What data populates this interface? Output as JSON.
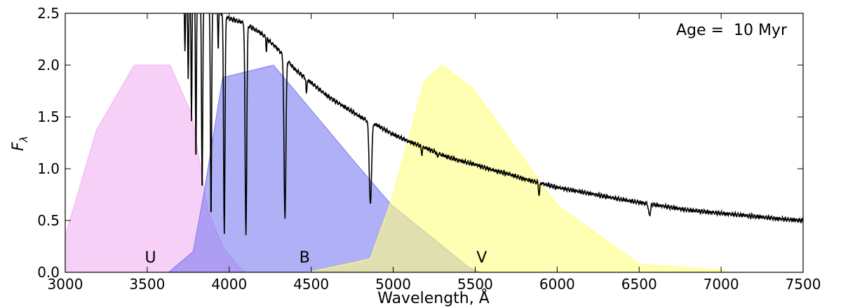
{
  "chart_data": {
    "type": "area",
    "xlabel": "Wavelength, Å",
    "ylabel": "F",
    "ylabel_subscript": "λ",
    "xlim": [
      3000,
      7500
    ],
    "ylim": [
      0,
      2.5
    ],
    "xticks": [
      3000,
      3500,
      4000,
      4500,
      5000,
      5500,
      6000,
      6500,
      7000,
      7500
    ],
    "xtick_labels": [
      "3000",
      "3500",
      "4000",
      "4500",
      "5000",
      "5500",
      "6000",
      "6500",
      "7000",
      "7500"
    ],
    "yticks": [
      0,
      0.5,
      1.0,
      1.5,
      2.0,
      2.5
    ],
    "ytick_labels": [
      "0.0",
      "0.5",
      "1.0",
      "1.5",
      "2.0",
      "2.5"
    ],
    "annotation": "Age =  10 Myr",
    "grid": false,
    "filters": [
      {
        "name": "U",
        "color": "#f1b0f1",
        "label_x": 3520,
        "label_y": 0.15,
        "x": [
          3000,
          3190,
          3420,
          3640,
          3770,
          3870,
          3960,
          4060,
          4100
        ],
        "y": [
          0.35,
          1.37,
          2.0,
          2.0,
          1.53,
          0.6,
          0.25,
          0.05,
          0.0
        ]
      },
      {
        "name": "B",
        "color": "#7c7cf0",
        "label_x": 4460,
        "label_y": 0.15,
        "x": [
          3630,
          3780,
          3850,
          3960,
          4270,
          4800,
          4990,
          5460,
          5530
        ],
        "y": [
          0.0,
          0.2,
          0.8,
          1.88,
          2.0,
          1.0,
          0.65,
          0.05,
          0.0
        ]
      },
      {
        "name": "V",
        "color": "#ffff80",
        "label_x": 5540,
        "label_y": 0.15,
        "x": [
          4480,
          4860,
          4990,
          5190,
          5300,
          5490,
          6000,
          6500,
          7020
        ],
        "y": [
          0.0,
          0.13,
          0.7,
          1.85,
          2.0,
          1.77,
          0.65,
          0.08,
          0.02
        ]
      }
    ],
    "spectrum": {
      "color": "#000000",
      "continuum": [
        [
          3700,
          2.72
        ],
        [
          3800,
          2.62
        ],
        [
          3900,
          2.53
        ],
        [
          3950,
          2.5
        ],
        [
          4000,
          2.45
        ],
        [
          4100,
          2.4
        ],
        [
          4200,
          2.3
        ],
        [
          4300,
          2.15
        ],
        [
          4400,
          1.96
        ],
        [
          4500,
          1.83
        ],
        [
          4600,
          1.7
        ],
        [
          4700,
          1.6
        ],
        [
          4800,
          1.5
        ],
        [
          4900,
          1.42
        ],
        [
          5000,
          1.33
        ],
        [
          5100,
          1.26
        ],
        [
          5200,
          1.2
        ],
        [
          5300,
          1.13
        ],
        [
          5400,
          1.08
        ],
        [
          5500,
          1.04
        ],
        [
          5600,
          0.99
        ],
        [
          5700,
          0.95
        ],
        [
          5800,
          0.9
        ],
        [
          5900,
          0.86
        ],
        [
          6000,
          0.82
        ],
        [
          6200,
          0.76
        ],
        [
          6400,
          0.7
        ],
        [
          6600,
          0.65
        ],
        [
          6800,
          0.6
        ],
        [
          7000,
          0.57
        ],
        [
          7200,
          0.54
        ],
        [
          7400,
          0.51
        ],
        [
          7500,
          0.5
        ]
      ],
      "absorption_lines": [
        {
          "x": 3730,
          "depth": 0.2,
          "width": 4
        },
        {
          "x": 3750,
          "depth": 0.3,
          "width": 4
        },
        {
          "x": 3770,
          "depth": 0.45,
          "width": 4
        },
        {
          "x": 3797,
          "depth": 0.6,
          "width": 4
        },
        {
          "x": 3835,
          "depth": 0.7,
          "width": 5
        },
        {
          "x": 3889,
          "depth": 0.8,
          "width": 5
        },
        {
          "x": 3933,
          "depth": 0.15,
          "width": 3
        },
        {
          "x": 3970,
          "depth": 0.85,
          "width": 6
        },
        {
          "x": 4102,
          "depth": 0.85,
          "width": 7
        },
        {
          "x": 4227,
          "depth": 0.06,
          "width": 3
        },
        {
          "x": 4340,
          "depth": 0.75,
          "width": 8
        },
        {
          "x": 4471,
          "depth": 0.08,
          "width": 4
        },
        {
          "x": 4861,
          "depth": 0.55,
          "width": 10
        },
        {
          "x": 5175,
          "depth": 0.06,
          "width": 5
        },
        {
          "x": 5270,
          "depth": 0.04,
          "width": 4
        },
        {
          "x": 5890,
          "depth": 0.14,
          "width": 5
        },
        {
          "x": 6563,
          "depth": 0.17,
          "width": 8
        }
      ]
    }
  }
}
